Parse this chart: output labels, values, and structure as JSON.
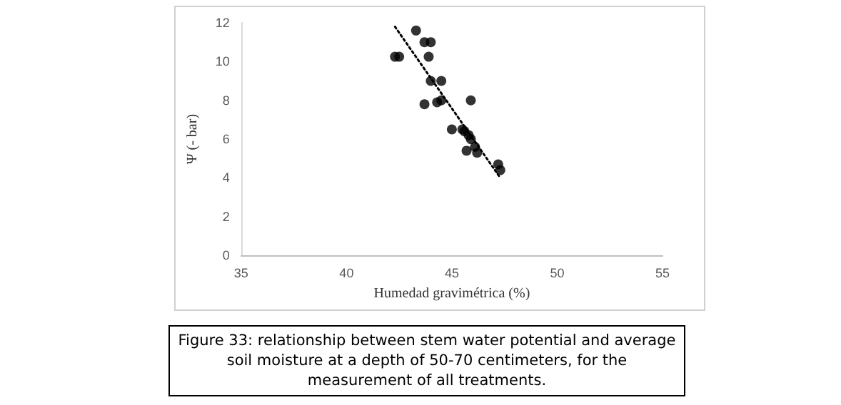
{
  "chart_data": {
    "type": "scatter",
    "xlabel": "Humedad gravimétrica (%)",
    "ylabel": "Ψ (- bar)",
    "xlim": [
      35,
      55
    ],
    "xticks": [
      35,
      40,
      45,
      50,
      55
    ],
    "ylim": [
      0,
      12
    ],
    "yticks": [
      0,
      2,
      4,
      6,
      8,
      10,
      12
    ],
    "grid": false,
    "marker": "circle",
    "annotations": [
      "Figure 33: relationship between stem water potential and average soil moisture at a depth of 50-70 centimeters, for the measurement of all treatments."
    ],
    "series": [
      {
        "color": "#000000",
        "x": [
          42.3,
          42.5,
          43.3,
          43.7,
          44.0,
          43.9,
          44.0,
          44.5,
          43.7,
          44.3,
          44.5,
          45.9,
          45.0,
          45.5,
          45.6,
          45.8,
          45.9,
          45.7,
          46.1,
          46.2,
          47.2,
          47.3
        ],
        "values": [
          10.25,
          10.25,
          11.6,
          11.0,
          11.0,
          10.25,
          9.0,
          9.0,
          7.8,
          7.9,
          8.0,
          8.0,
          6.5,
          6.5,
          6.4,
          6.2,
          6.0,
          5.4,
          5.6,
          5.3,
          4.7,
          4.4
        ]
      },
      {
        "type": "line",
        "color": "#000000",
        "line_style": "dotted",
        "marker": "none",
        "x": [
          42.3,
          47.3
        ],
        "values": [
          11.8,
          4.0
        ]
      }
    ]
  }
}
